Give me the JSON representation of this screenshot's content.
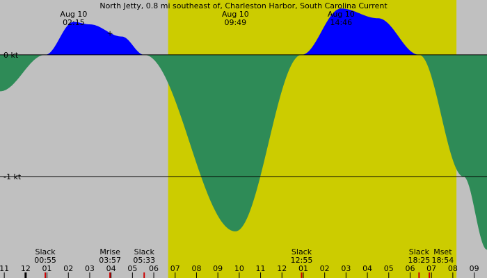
{
  "chart_data": {
    "type": "area",
    "title": "North Jetty, 0.8 mi southeast of, Charleston Harbor, South Carolina Current",
    "unit": "kt",
    "xlabel": "",
    "ylabel": "",
    "x_range_hours": [
      -1.2,
      21.6
    ],
    "ylim": [
      -1.73,
      0.45
    ],
    "daylight": [
      6.67,
      20.17
    ],
    "hour_tick_labels": [
      "11",
      "12",
      "01",
      "02",
      "03",
      "04",
      "05",
      "06",
      "07",
      "08",
      "09",
      "10",
      "11",
      "12",
      "01",
      "02",
      "03",
      "04",
      "05",
      "06",
      "07",
      "08",
      "09"
    ],
    "y_ticks": [
      {
        "label": "0 kt",
        "value": 0
      },
      {
        "label": "-1 kt",
        "value": -1
      }
    ],
    "peaks": [
      {
        "date": "Aug 10",
        "time": "02:15",
        "hour": 2.25,
        "value": 0.27
      },
      {
        "date": "Aug 10",
        "time": "09:49",
        "hour": 9.82,
        "value": -1.45
      },
      {
        "date": "Aug 10",
        "time": "14:46",
        "hour": 14.77,
        "value": 0.38
      }
    ],
    "events": [
      {
        "label": "Slack",
        "time": "00:55",
        "hour": 0.92,
        "color": "#cc0000"
      },
      {
        "label": "Mrise",
        "time": "03:57",
        "hour": 3.95,
        "color": "#cc0000"
      },
      {
        "label": "Slack",
        "time": "05:33",
        "hour": 5.55,
        "color": "#cc0000"
      },
      {
        "label": "Slack",
        "time": "12:55",
        "hour": 12.92,
        "color": "#cc0000"
      },
      {
        "label": "Slack",
        "time": "18:25",
        "hour": 18.42,
        "color": "#cc0000"
      },
      {
        "label": "Mset",
        "time": "18:54",
        "hour": 18.9,
        "color": "#cc0000"
      }
    ],
    "current_points": [
      [
        -1.2,
        -0.3
      ],
      [
        0.92,
        0
      ],
      [
        2.25,
        0.27
      ],
      [
        3.0,
        0.25
      ],
      [
        4.5,
        0.15
      ],
      [
        5.55,
        0
      ],
      [
        9.82,
        -1.45
      ],
      [
        12.92,
        0
      ],
      [
        14.77,
        0.38
      ],
      [
        16.5,
        0.3
      ],
      [
        18.42,
        0
      ],
      [
        20.5,
        -1.0
      ],
      [
        21.6,
        -1.6
      ]
    ],
    "colors": {
      "night": "#c0c0c0",
      "day": "#cccc00",
      "flood": "#0000ff",
      "ebb": "#2e8b57",
      "event_tick": "#cc0000"
    }
  }
}
